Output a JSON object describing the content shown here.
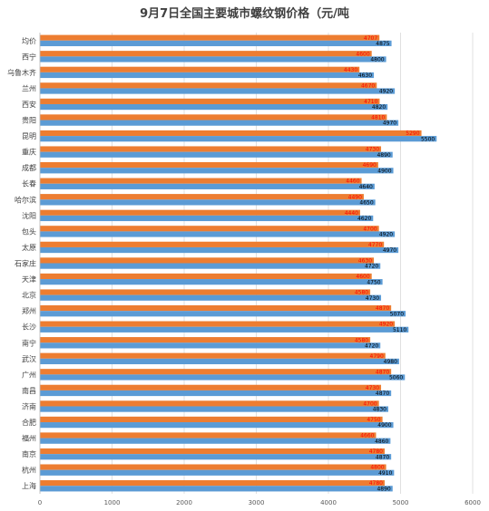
{
  "chart_data": {
    "type": "bar",
    "orientation": "horizontal",
    "title": "9月7日全国主要城市螺纹钢价格（元/吨",
    "categories": [
      "均价",
      "西宁",
      "乌鲁木齐",
      "兰州",
      "西安",
      "贵阳",
      "昆明",
      "重庆",
      "成都",
      "长春",
      "哈尔滨",
      "沈阳",
      "包头",
      "太原",
      "石家庄",
      "天津",
      "北京",
      "郑州",
      "长沙",
      "南宁",
      "武汉",
      "广州",
      "南昌",
      "济南",
      "合肥",
      "福州",
      "南京",
      "杭州",
      "上海"
    ],
    "series": [
      {
        "color": "#ed7d31",
        "values": [
          4707,
          4600,
          4430,
          4670,
          4710,
          4810,
          5290,
          4730,
          4690,
          4460,
          4490,
          4440,
          4700,
          4770,
          4630,
          4600,
          4580,
          4870,
          4920,
          4580,
          4790,
          4870,
          4730,
          4700,
          4750,
          4660,
          4780,
          4800,
          4780
        ]
      },
      {
        "color": "#5b9bd5",
        "values": [
          4875,
          4800,
          4630,
          4920,
          4820,
          4970,
          5500,
          4890,
          4900,
          4640,
          4650,
          4620,
          4920,
          4970,
          4720,
          4750,
          4730,
          5070,
          5110,
          4720,
          4980,
          5060,
          4870,
          4830,
          4900,
          4860,
          4870,
          4910,
          4890
        ]
      }
    ],
    "xlim": [
      0,
      6000
    ],
    "xticks": [
      0,
      1000,
      2000,
      3000,
      4000,
      5000,
      6000
    ],
    "grid": true,
    "legend": "none"
  }
}
